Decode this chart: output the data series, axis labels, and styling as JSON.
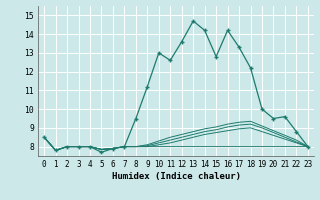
{
  "xlabel": "Humidex (Indice chaleur)",
  "background_color": "#cce8e8",
  "grid_color": "#ffffff",
  "line_color": "#1e7b6e",
  "xlim": [
    -0.5,
    23.5
  ],
  "ylim": [
    7.5,
    15.5
  ],
  "yticks": [
    8,
    9,
    10,
    11,
    12,
    13,
    14,
    15
  ],
  "xticks": [
    0,
    1,
    2,
    3,
    4,
    5,
    6,
    7,
    8,
    9,
    10,
    11,
    12,
    13,
    14,
    15,
    16,
    17,
    18,
    19,
    20,
    21,
    22,
    23
  ],
  "main_series_x": [
    0,
    1,
    2,
    3,
    4,
    5,
    6,
    7,
    8,
    9,
    10,
    11,
    12,
    13,
    14,
    15,
    16,
    17,
    18,
    19,
    20,
    21,
    22,
    23
  ],
  "main_series_y": [
    8.5,
    7.8,
    8.0,
    8.0,
    8.0,
    7.7,
    7.9,
    8.0,
    9.5,
    11.2,
    13.0,
    12.6,
    13.6,
    14.7,
    14.2,
    12.8,
    14.2,
    13.3,
    12.2,
    10.0,
    9.5,
    9.6,
    8.8,
    8.0
  ],
  "flat_line1_x": [
    0,
    1,
    2,
    3,
    4,
    5,
    6,
    7,
    8,
    9,
    10,
    11,
    12,
    13,
    14,
    15,
    16,
    17,
    18,
    19,
    20,
    21,
    22,
    23
  ],
  "flat_line1_y": [
    8.5,
    7.8,
    8.0,
    8.0,
    8.0,
    7.85,
    7.9,
    8.0,
    8.0,
    8.0,
    8.0,
    8.0,
    8.0,
    8.0,
    8.0,
    8.0,
    8.0,
    8.0,
    8.0,
    8.0,
    8.0,
    8.0,
    8.0,
    8.0
  ],
  "flat_line2_x": [
    0,
    1,
    2,
    3,
    4,
    5,
    6,
    7,
    8,
    9,
    10,
    11,
    12,
    13,
    14,
    15,
    16,
    17,
    18,
    19,
    20,
    21,
    22,
    23
  ],
  "flat_line2_y": [
    8.5,
    7.8,
    8.0,
    8.0,
    8.0,
    7.85,
    7.9,
    8.0,
    8.0,
    8.0,
    8.1,
    8.2,
    8.35,
    8.5,
    8.65,
    8.75,
    8.85,
    8.95,
    9.0,
    8.8,
    8.6,
    8.4,
    8.2,
    8.0
  ],
  "flat_line3_x": [
    0,
    1,
    2,
    3,
    4,
    5,
    6,
    7,
    8,
    9,
    10,
    11,
    12,
    13,
    14,
    15,
    16,
    17,
    18,
    19,
    20,
    21,
    22,
    23
  ],
  "flat_line3_y": [
    8.5,
    7.8,
    8.0,
    8.0,
    8.0,
    7.85,
    7.9,
    8.0,
    8.0,
    8.05,
    8.2,
    8.35,
    8.5,
    8.65,
    8.8,
    8.9,
    9.05,
    9.15,
    9.2,
    9.0,
    8.75,
    8.5,
    8.25,
    8.0
  ],
  "flat_line4_x": [
    0,
    1,
    2,
    3,
    4,
    5,
    6,
    7,
    8,
    9,
    10,
    11,
    12,
    13,
    14,
    15,
    16,
    17,
    18,
    19,
    20,
    21,
    22,
    23
  ],
  "flat_line4_y": [
    8.5,
    7.8,
    8.0,
    8.0,
    8.0,
    7.85,
    7.9,
    8.0,
    8.0,
    8.1,
    8.3,
    8.5,
    8.65,
    8.8,
    8.95,
    9.05,
    9.2,
    9.3,
    9.35,
    9.1,
    8.85,
    8.6,
    8.35,
    8.0
  ]
}
